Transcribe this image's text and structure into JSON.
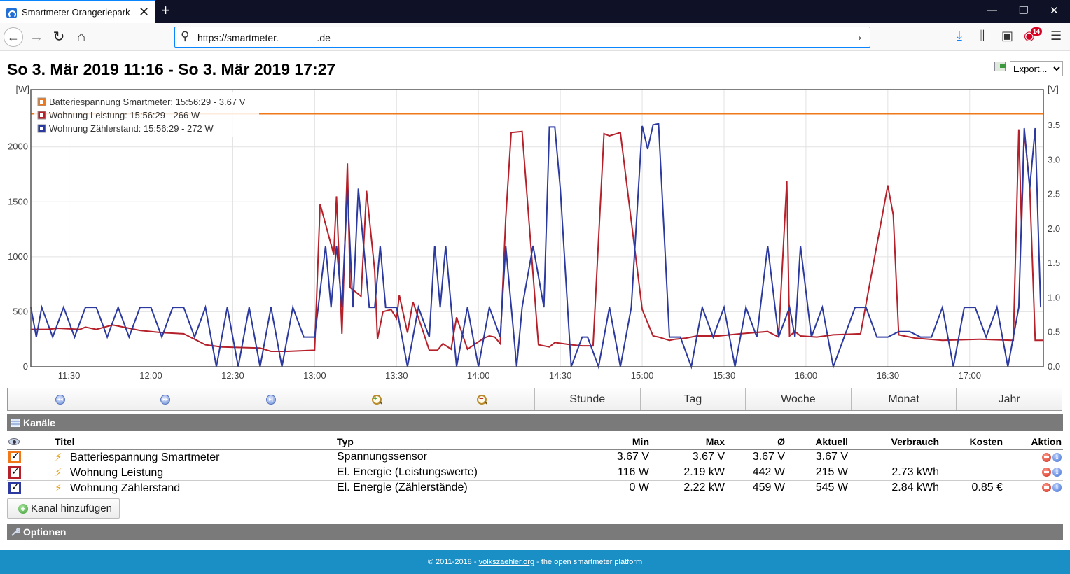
{
  "browser": {
    "tab_title": "Smartmeter Orangeriepark",
    "url": "https://smartmeter._______.de",
    "notification_count": "14"
  },
  "page": {
    "title": "So 3. Mär 2019 11:16 - So 3. Mär 2019 17:27",
    "export_label": "Export..."
  },
  "chart_data": {
    "type": "line",
    "left_axis_unit": "[W]",
    "right_axis_unit": "[V]",
    "y_left_ticks": [
      "0",
      "500",
      "1000",
      "1500",
      "2000"
    ],
    "y_right_ticks": [
      "0.0",
      "0.5",
      "1.0",
      "1.5",
      "2.0",
      "2.5",
      "3.0",
      "3.5"
    ],
    "x_ticks": [
      "11:30",
      "12:00",
      "12:30",
      "13:00",
      "13:30",
      "14:00",
      "14:30",
      "15:00",
      "15:30",
      "16:00",
      "16:30",
      "17:00"
    ],
    "x_range": [
      "11:16",
      "17:27"
    ],
    "y_left_range": [
      0,
      2520
    ],
    "y_right_range": [
      0,
      4.02
    ],
    "grid": true,
    "legend_position": "top-left",
    "legend": [
      "Batteriespannung Smartmeter: 15:56:29 - 3.67 V",
      "Wohnung Leistung: 15:56:29 - 266 W",
      "Wohnung Zählerstand: 15:56:29 - 272 W"
    ],
    "series": [
      {
        "name": "Batteriespannung Smartmeter",
        "color": "#f07818",
        "axis": "right",
        "x": [
          "11:16",
          "17:27"
        ],
        "values": [
          3.67,
          3.67
        ]
      },
      {
        "name": "Wohnung Leistung",
        "color": "#b5202a",
        "axis": "left",
        "x": [
          "11:16",
          "11:22",
          "11:26",
          "11:34",
          "11:36",
          "11:40",
          "11:46",
          "11:56",
          "12:04",
          "12:12",
          "12:16",
          "12:20",
          "12:26",
          "12:40",
          "12:44",
          "12:50",
          "13:00",
          "13:02",
          "13:07",
          "13:08",
          "13:10",
          "13:12",
          "13:13",
          "13:15",
          "13:17",
          "13:19",
          "13:22",
          "13:23",
          "13:25",
          "13:28",
          "13:30",
          "13:31",
          "13:34",
          "13:36",
          "13:40",
          "13:42",
          "13:45",
          "13:47",
          "13:50",
          "13:52",
          "13:56",
          "14:02",
          "14:04",
          "14:06",
          "14:08",
          "14:10",
          "14:12",
          "14:16",
          "14:22",
          "14:26",
          "14:28",
          "14:34",
          "14:38",
          "14:42",
          "14:46",
          "14:48",
          "14:52",
          "15:00",
          "15:04",
          "15:06",
          "15:10",
          "15:12",
          "15:16",
          "15:20",
          "15:28",
          "15:36",
          "15:46",
          "15:50",
          "15:53",
          "15:54",
          "15:56",
          "15:58",
          "16:04",
          "16:10",
          "16:20",
          "16:30",
          "16:32",
          "16:34",
          "16:40",
          "16:50",
          "17:04",
          "17:16",
          "17:18",
          "17:19",
          "17:20",
          "17:22",
          "17:24",
          "17:27"
        ],
        "values": [
          340,
          340,
          350,
          340,
          360,
          340,
          380,
          330,
          310,
          300,
          250,
          200,
          180,
          170,
          140,
          140,
          150,
          1480,
          1020,
          1550,
          300,
          1850,
          720,
          680,
          640,
          1600,
          870,
          250,
          500,
          520,
          440,
          650,
          310,
          590,
          300,
          150,
          150,
          210,
          160,
          450,
          160,
          260,
          280,
          270,
          210,
          1350,
          2130,
          2140,
          200,
          180,
          220,
          200,
          190,
          190,
          2120,
          2100,
          2130,
          520,
          280,
          270,
          240,
          250,
          260,
          280,
          280,
          300,
          320,
          270,
          1690,
          280,
          320,
          280,
          270,
          290,
          300,
          1650,
          1380,
          290,
          260,
          240,
          250,
          240,
          2160,
          1270,
          2140,
          1650,
          240,
          240
        ]
      },
      {
        "name": "Wohnung Zählerstand",
        "color": "#2c3aa0",
        "axis": "left",
        "x": [
          "11:16",
          "11:18",
          "11:20",
          "11:24",
          "11:28",
          "11:32",
          "11:36",
          "11:40",
          "11:44",
          "11:48",
          "11:52",
          "11:56",
          "12:00",
          "12:04",
          "12:08",
          "12:12",
          "12:16",
          "12:20",
          "12:24",
          "12:28",
          "12:32",
          "12:36",
          "12:40",
          "12:44",
          "12:48",
          "12:52",
          "12:56",
          "13:00",
          "13:04",
          "13:06",
          "13:08",
          "13:10",
          "13:12",
          "13:14",
          "13:16",
          "13:20",
          "13:22",
          "13:24",
          "13:26",
          "13:30",
          "13:34",
          "13:38",
          "13:42",
          "13:44",
          "13:46",
          "13:48",
          "13:52",
          "13:56",
          "14:00",
          "14:04",
          "14:08",
          "14:10",
          "14:14",
          "14:16",
          "14:20",
          "14:24",
          "14:26",
          "14:28",
          "14:30",
          "14:34",
          "14:38",
          "14:40",
          "14:44",
          "14:48",
          "14:52",
          "14:56",
          "15:00",
          "15:02",
          "15:04",
          "15:06",
          "15:10",
          "15:14",
          "15:18",
          "15:22",
          "15:26",
          "15:30",
          "15:34",
          "15:38",
          "15:42",
          "15:46",
          "15:50",
          "15:54",
          "15:56",
          "15:58",
          "16:02",
          "16:06",
          "16:10",
          "16:14",
          "16:18",
          "16:22",
          "16:26",
          "16:30",
          "16:34",
          "16:38",
          "16:42",
          "16:46",
          "16:50",
          "16:54",
          "16:58",
          "17:02",
          "17:06",
          "17:10",
          "17:14",
          "17:18",
          "17:20",
          "17:22",
          "17:24",
          "17:26"
        ],
        "values": [
          540,
          270,
          540,
          270,
          540,
          270,
          540,
          540,
          270,
          540,
          270,
          540,
          540,
          270,
          540,
          540,
          270,
          540,
          0,
          540,
          0,
          540,
          0,
          540,
          0,
          540,
          270,
          270,
          1100,
          540,
          1100,
          540,
          1620,
          540,
          1620,
          540,
          540,
          1100,
          540,
          540,
          0,
          540,
          270,
          1100,
          540,
          1100,
          0,
          540,
          0,
          540,
          270,
          1100,
          0,
          540,
          1100,
          540,
          2180,
          2180,
          1620,
          0,
          270,
          270,
          0,
          540,
          0,
          540,
          2190,
          1980,
          2200,
          2210,
          270,
          270,
          0,
          540,
          270,
          540,
          0,
          540,
          270,
          1100,
          270,
          540,
          270,
          1100,
          270,
          540,
          0,
          270,
          540,
          540,
          270,
          270,
          320,
          320,
          270,
          270,
          540,
          0,
          540,
          540,
          270,
          540,
          0,
          540,
          2170,
          1620,
          2170,
          540
        ]
      }
    ]
  },
  "nav_buttons": [
    "Stunde",
    "Tag",
    "Woche",
    "Monat",
    "Jahr"
  ],
  "channels": {
    "section_title": "Kanäle",
    "headers": {
      "title": "Titel",
      "type": "Typ",
      "min": "Min",
      "max": "Max",
      "avg": "Ø",
      "current": "Aktuell",
      "consumption": "Verbrauch",
      "cost": "Kosten",
      "action": "Aktion"
    },
    "rows": [
      {
        "title": "Batteriespannung Smartmeter",
        "type": "Spannungssensor",
        "min": "3.67 V",
        "max": "3.67 V",
        "avg": "3.67 V",
        "current": "3.67 V",
        "consumption": "",
        "cost": "",
        "color": "#f07818"
      },
      {
        "title": "Wohnung Leistung",
        "type": "El. Energie (Leistungswerte)",
        "min": "116 W",
        "max": "2.19 kW",
        "avg": "442 W",
        "current": "215 W",
        "consumption": "2.73 kWh",
        "cost": "",
        "color": "#b5202a"
      },
      {
        "title": "Wohnung Zählerstand",
        "type": "El. Energie (Zählerstände)",
        "min": "0 W",
        "max": "2.22 kW",
        "avg": "459 W",
        "current": "545 W",
        "consumption": "2.84 kWh",
        "cost": "0.85 €",
        "color": "#2c3aa0"
      }
    ],
    "add_label": "Kanal hinzufügen"
  },
  "options": {
    "section_title": "Optionen"
  },
  "footer": {
    "prefix": "© 2011-2018 - ",
    "link": "volkszaehler.org",
    "suffix": " - the open smartmeter platform"
  }
}
